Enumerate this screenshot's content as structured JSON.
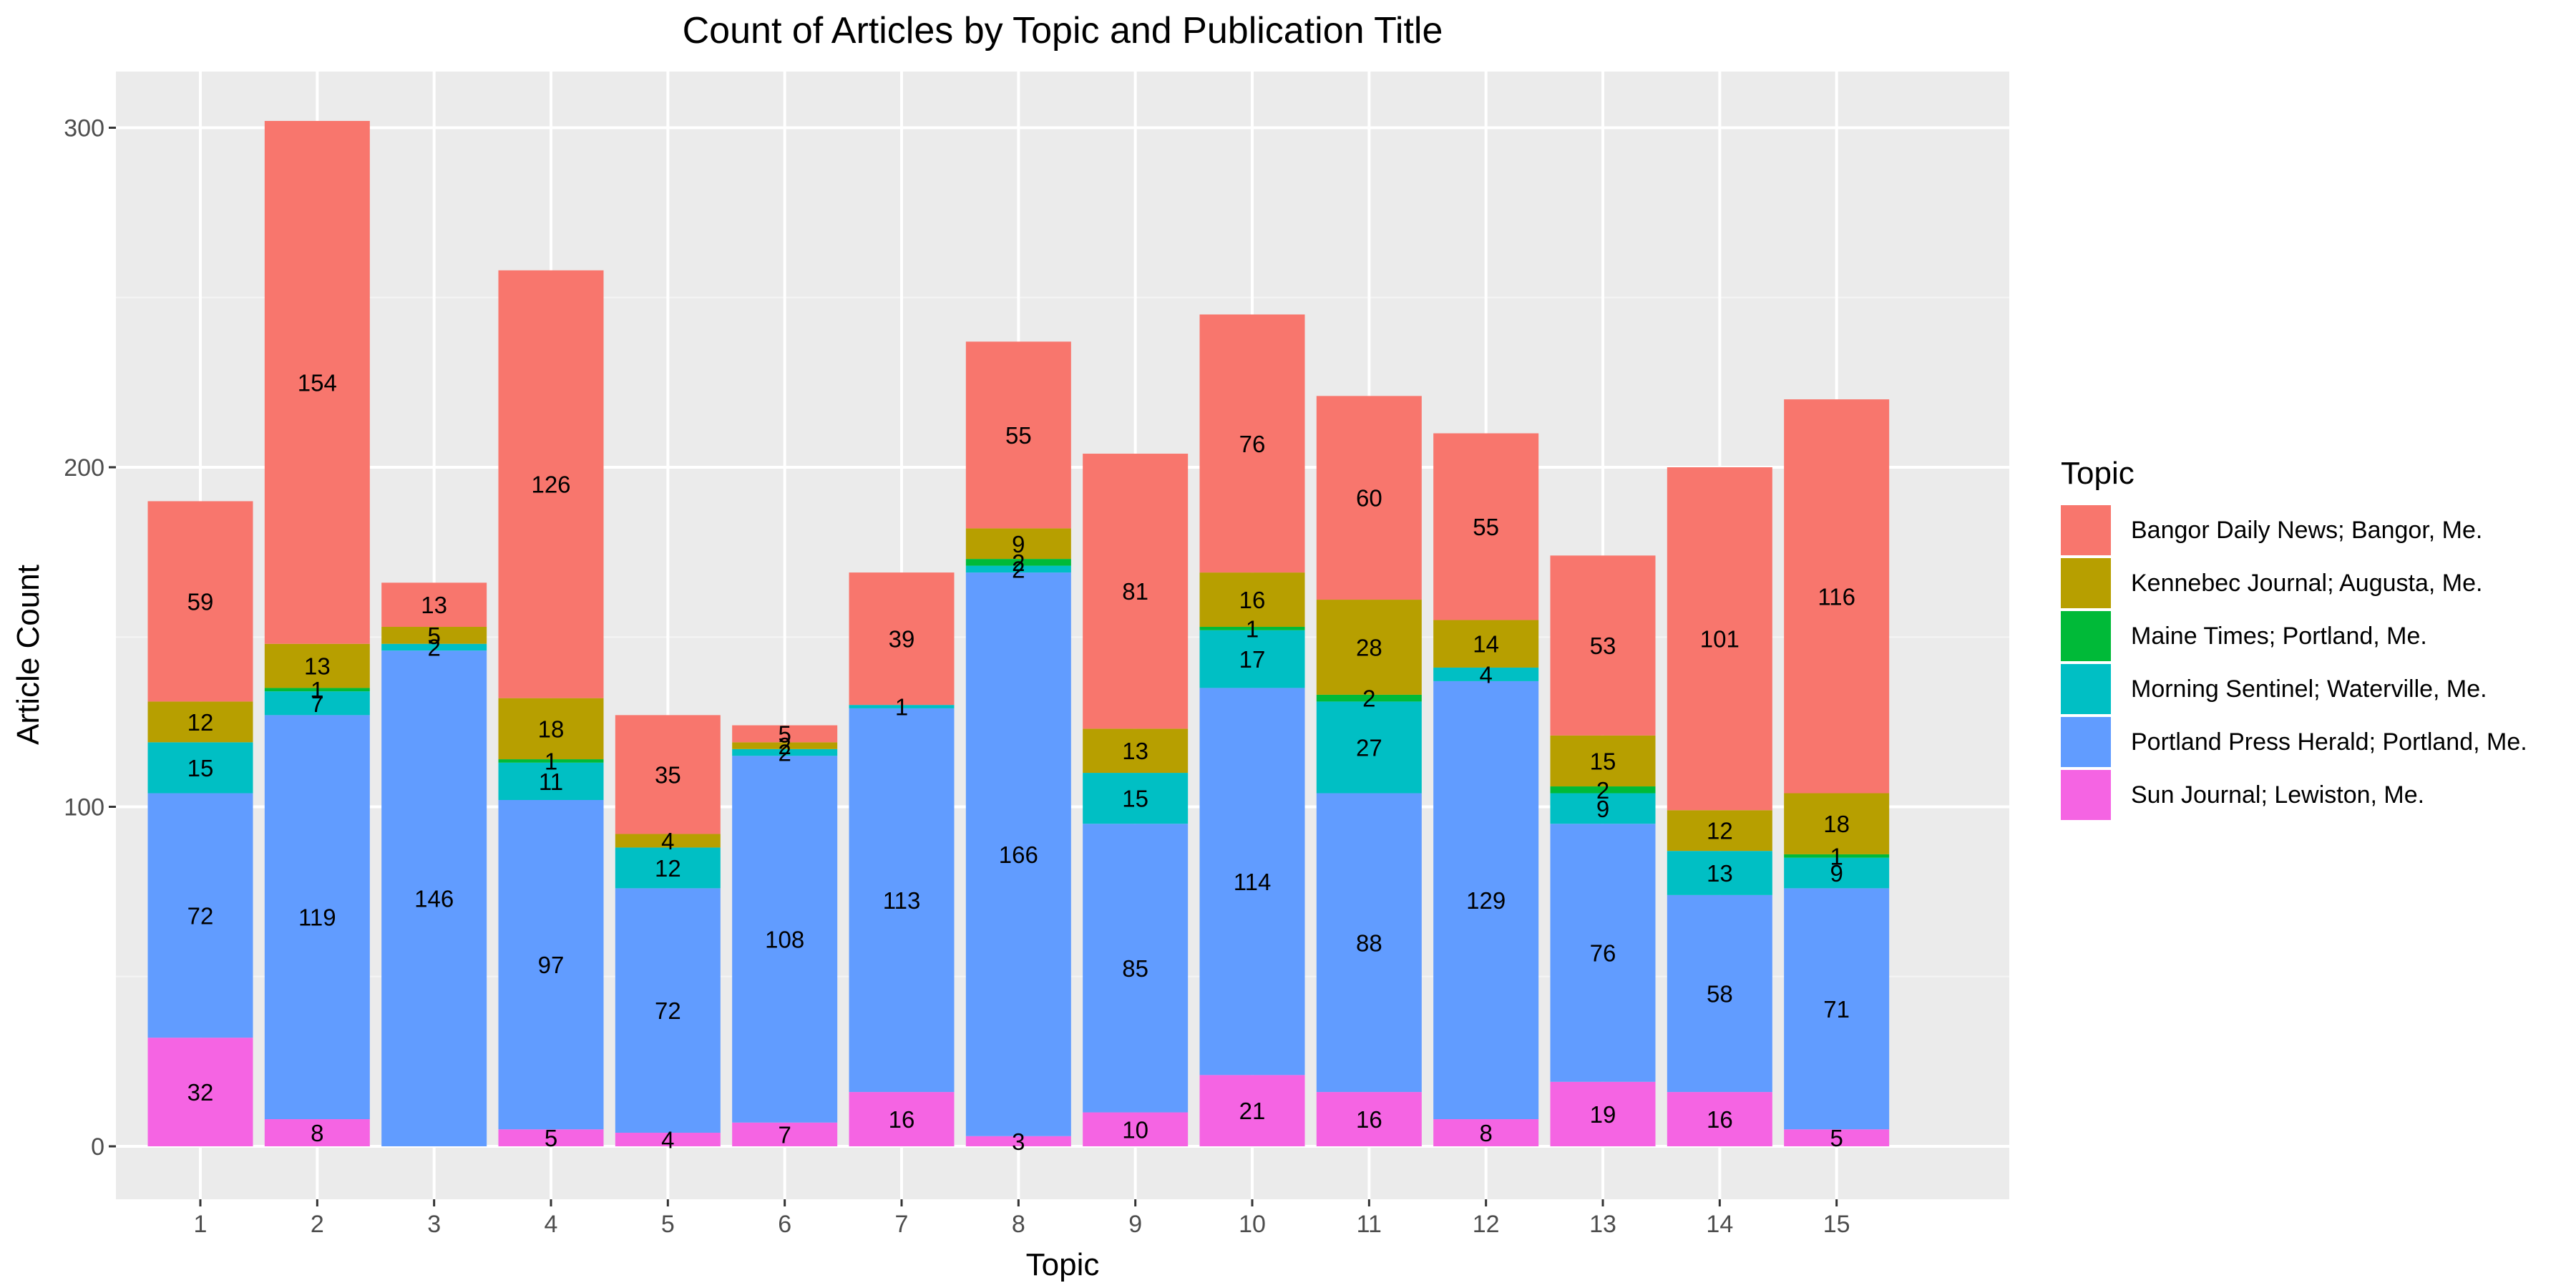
{
  "chart_data": {
    "type": "bar",
    "stacked": true,
    "title": "Count of Articles by Topic and Publication Title",
    "xlabel": "Topic",
    "ylabel": "Article Count",
    "ylim": [
      0,
      315
    ],
    "yticks": [
      0,
      100,
      200,
      300
    ],
    "grid": true,
    "legend_title": "Topic",
    "legend_position": "right",
    "categories": [
      "1",
      "2",
      "3",
      "4",
      "5",
      "6",
      "7",
      "8",
      "9",
      "10",
      "11",
      "12",
      "13",
      "14",
      "15"
    ],
    "series": [
      {
        "name": "Bangor Daily News; Bangor, Me.",
        "color": "#F8766D",
        "values": [
          59,
          154,
          13,
          126,
          35,
          5,
          39,
          55,
          81,
          76,
          60,
          55,
          53,
          101,
          116
        ]
      },
      {
        "name": "Kennebec Journal; Augusta, Me.",
        "color": "#B79F00",
        "values": [
          12,
          13,
          5,
          18,
          4,
          2,
          0,
          9,
          13,
          16,
          28,
          14,
          15,
          12,
          18
        ]
      },
      {
        "name": "Maine Times; Portland, Me.",
        "color": "#00BA38",
        "values": [
          0,
          1,
          0,
          1,
          0,
          0,
          0,
          2,
          0,
          1,
          2,
          0,
          2,
          0,
          1
        ]
      },
      {
        "name": "Morning Sentinel; Waterville, Me.",
        "color": "#00BFC4",
        "values": [
          15,
          7,
          2,
          11,
          12,
          2,
          1,
          2,
          15,
          17,
          27,
          4,
          9,
          13,
          9
        ]
      },
      {
        "name": "Portland Press Herald; Portland, Me.",
        "color": "#619CFF",
        "values": [
          72,
          119,
          146,
          97,
          72,
          108,
          113,
          166,
          85,
          114,
          88,
          129,
          76,
          58,
          71
        ]
      },
      {
        "name": "Sun Journal; Lewiston, Me.",
        "color": "#F564E3",
        "values": [
          32,
          8,
          0,
          5,
          4,
          7,
          16,
          3,
          10,
          21,
          16,
          8,
          19,
          16,
          5
        ]
      }
    ]
  }
}
